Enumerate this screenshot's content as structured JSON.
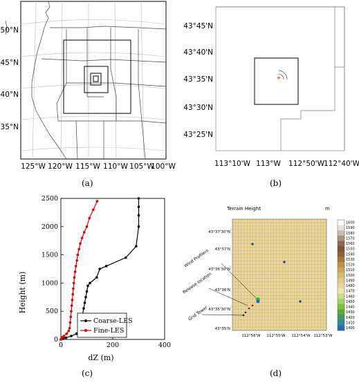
{
  "panel_a": {
    "caption": "(a)",
    "lat_labels": [
      "50°N",
      "45°N",
      "40°N",
      "35°N"
    ],
    "lon_labels": [
      "125°W",
      "120°W",
      "115°W",
      "110°W",
      "105°W",
      "100°W"
    ]
  },
  "panel_b": {
    "caption": "(b)",
    "lat_labels": [
      "43°45'N",
      "43°40'N",
      "43°35'N",
      "43°30'N",
      "43°25'N"
    ],
    "lon_labels": [
      "113°10'W",
      "113°W",
      "112°50'W",
      "112°40'W"
    ]
  },
  "panel_c": {
    "caption": "(c)",
    "xlabel": "dZ (m)",
    "ylabel": "Height (m)",
    "legend_position": "bottom-right",
    "colors": {
      "coarse": "#000000",
      "fine": "#e00000"
    }
  },
  "panel_d": {
    "caption": "(d)",
    "title": "Terrain Height",
    "unit": "m",
    "lat_labels": [
      "43°37'30\"N",
      "43°37'N",
      "43°36'30\"N",
      "43°36'N",
      "43°35'30\"N",
      "43°35'N"
    ],
    "lon_labels": [
      "112°56'W",
      "112°55'W",
      "112°54'W",
      "112°53'W"
    ],
    "annotations": [
      "Wind Profilers",
      "Release location",
      "Grid Tower"
    ],
    "colorbar_labels": [
      "1600",
      "1590",
      "1580",
      "1570",
      "1560",
      "1550",
      "1540",
      "1530",
      "1520",
      "1510",
      "1500",
      "1490",
      "1480",
      "1470",
      "1460",
      "1450",
      "1440",
      "1430",
      "1420",
      "1410",
      "1400"
    ],
    "colorbar_colors": [
      "#ffffff",
      "#e8e2dc",
      "#c9bcb0",
      "#a8927c",
      "#8a6a4c",
      "#7a5434",
      "#8c6232",
      "#a6793a",
      "#bb9148",
      "#cba659",
      "#d7b96c",
      "#e2ca84",
      "#e9d698",
      "#eee4ac",
      "#c9dd8a",
      "#a4d062",
      "#7fc03e",
      "#5aaa3a",
      "#3f9c5a",
      "#2f8ca0",
      "#1f6fb8"
    ],
    "map_fill": "#e9d698"
  },
  "chart_data": {
    "type": "line",
    "xlim": [
      0,
      400
    ],
    "ylim": [
      0,
      2500
    ],
    "xticks": [
      0,
      200,
      400
    ],
    "yticks": [
      0,
      500,
      1000,
      1500,
      2000,
      2500
    ],
    "grid": false,
    "series": [
      {
        "name": "Coarse-LES",
        "x": [
          0,
          5,
          10,
          20,
          40,
          60,
          72,
          76,
          80,
          84,
          88,
          92,
          96,
          100,
          104,
          112,
          138,
          150,
          175,
          250,
          290,
          300,
          300,
          300,
          300
        ],
        "y": [
          0,
          10,
          20,
          30,
          60,
          100,
          180,
          250,
          350,
          450,
          550,
          650,
          750,
          850,
          950,
          1000,
          1100,
          1250,
          1300,
          1450,
          1650,
          2000,
          2200,
          2350,
          2500
        ]
      },
      {
        "name": "Fine-LES",
        "x": [
          0,
          3,
          6,
          12,
          22,
          30,
          34,
          36,
          38,
          40,
          42,
          44,
          46,
          48,
          50,
          52,
          55,
          58,
          62,
          65,
          70,
          75,
          82,
          90,
          100,
          110,
          125,
          140
        ],
        "y": [
          0,
          20,
          40,
          60,
          100,
          150,
          200,
          300,
          400,
          500,
          600,
          700,
          800,
          900,
          1000,
          1100,
          1200,
          1300,
          1400,
          1500,
          1600,
          1700,
          1800,
          1900,
          2000,
          2150,
          2300,
          2450
        ]
      }
    ]
  }
}
